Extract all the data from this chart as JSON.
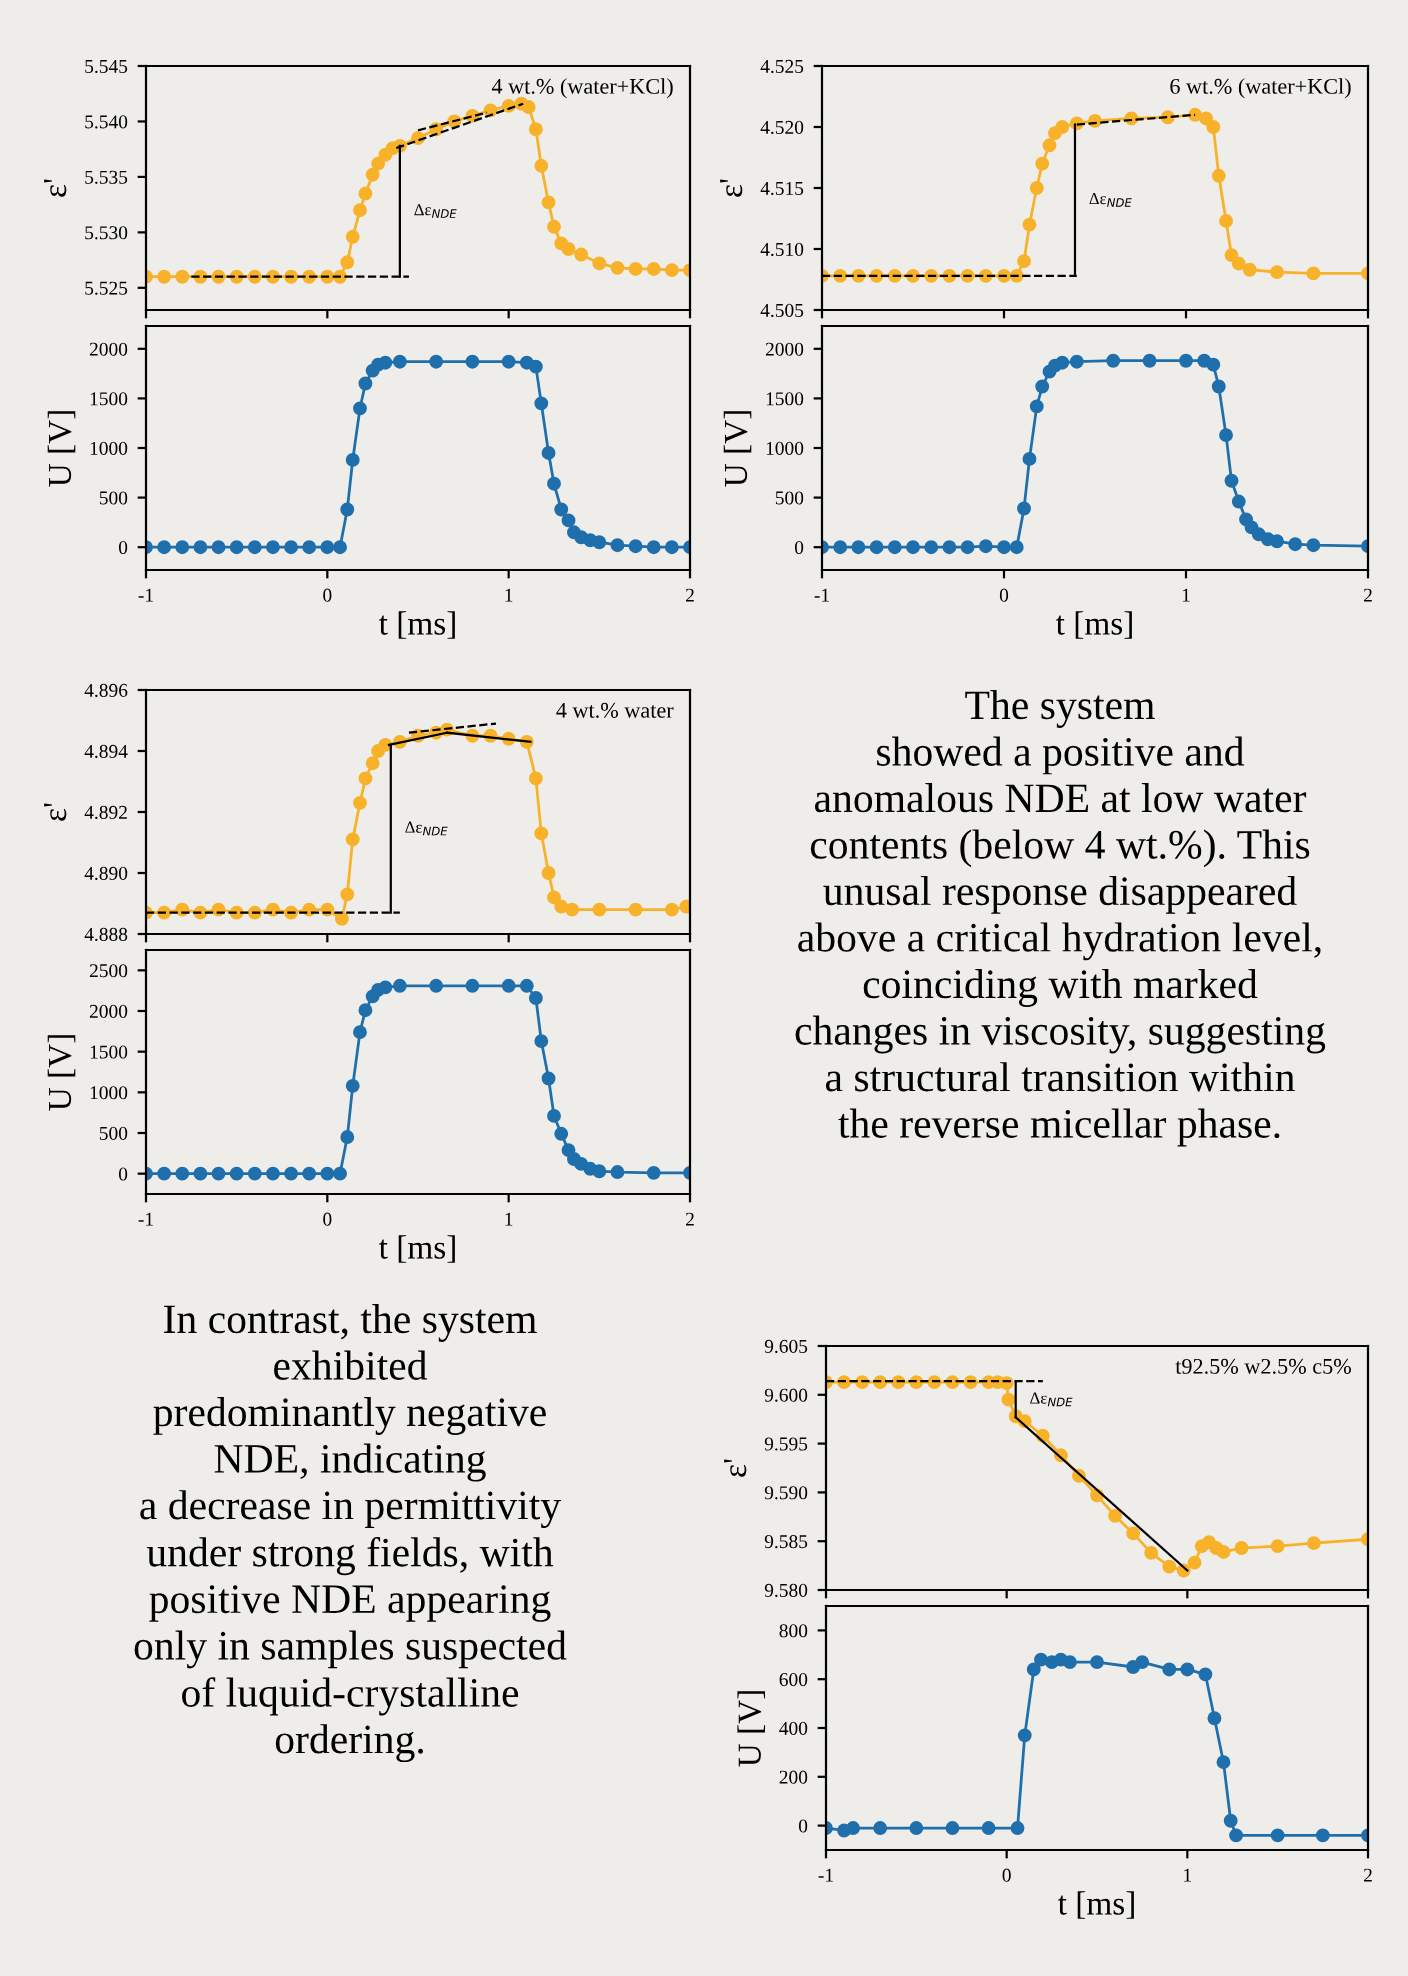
{
  "chart_data": [
    {
      "type": "line",
      "ylabel": "ε'",
      "xlim": [
        -1,
        2
      ],
      "xticks": [
        -1,
        0,
        1,
        2
      ],
      "ylim": [
        5.523,
        5.545
      ],
      "yticks": [
        5.525,
        {
          "value": 5.53,
          "label": "5.530"
        },
        5.535,
        {
          "value": 5.54,
          "label": "5.540"
        },
        5.545
      ],
      "tick_labels": "y",
      "marker": "circle",
      "grid": false,
      "legend": false,
      "annotations": [
        "4 wt.% (water+KCl)",
        "Δε$_{NDE}$"
      ],
      "series": [
        {
          "color": "#f8b22a",
          "x": [
            -1,
            -0.9,
            -0.8,
            -0.7,
            -0.6,
            -0.5,
            -0.4,
            -0.3,
            -0.2,
            -0.1,
            0,
            0.07,
            0.11,
            0.14,
            0.18,
            0.21,
            0.25,
            0.28,
            0.32,
            0.36,
            0.4,
            0.5,
            0.6,
            0.7,
            0.8,
            0.9,
            1.0,
            1.07,
            1.11,
            1.15,
            1.18,
            1.22,
            1.25,
            1.29,
            1.33,
            1.4,
            1.5,
            1.6,
            1.7,
            1.8,
            1.9,
            2.0
          ],
          "values": [
            5.526,
            5.526,
            5.526,
            5.526,
            5.526,
            5.526,
            5.526,
            5.526,
            5.526,
            5.526,
            5.526,
            5.526,
            5.5273,
            5.5296,
            5.532,
            5.5335,
            5.5352,
            5.5362,
            5.537,
            5.5376,
            5.5378,
            5.5385,
            5.5393,
            5.54,
            5.5405,
            5.541,
            5.5414,
            5.5416,
            5.5413,
            5.5393,
            5.536,
            5.5327,
            5.5305,
            5.529,
            5.5285,
            5.528,
            5.5272,
            5.5268,
            5.5267,
            5.5267,
            5.5266,
            5.5266
          ]
        },
        {
          "color": "#000000",
          "marker": "none",
          "line_style": "dashed",
          "x": [
            -0.75,
            0.45
          ],
          "values": [
            5.526,
            5.526
          ]
        },
        {
          "color": "#000000",
          "marker": "none",
          "line_style": "dashed",
          "x": [
            0.38,
            1.08
          ],
          "values": [
            5.5376,
            5.5416
          ]
        },
        {
          "color": "#000000",
          "marker": "none",
          "line_style": "dashed",
          "x": [
            0.5,
            0.88
          ],
          "values": [
            5.5392,
            5.5408
          ]
        },
        {
          "color": "#000000",
          "marker": "none",
          "x": [
            0.4,
            0.4
          ],
          "values": [
            5.526,
            5.5378
          ]
        }
      ]
    },
    {
      "type": "line",
      "ylabel": "U [V]",
      "xlabel": "t [ms]",
      "xlim": [
        -1,
        2
      ],
      "xticks": [
        -1,
        0,
        1,
        2
      ],
      "ylim": [
        -230,
        2230
      ],
      "yticks": [
        0,
        500,
        1000,
        1500,
        2000
      ],
      "marker": "circle",
      "grid": false,
      "legend": false,
      "series": [
        {
          "color": "#1f6fad",
          "x": [
            -1,
            -0.9,
            -0.8,
            -0.7,
            -0.6,
            -0.5,
            -0.4,
            -0.3,
            -0.2,
            -0.1,
            0,
            0.07,
            0.11,
            0.14,
            0.18,
            0.21,
            0.25,
            0.28,
            0.32,
            0.4,
            0.6,
            0.8,
            1.0,
            1.1,
            1.15,
            1.18,
            1.22,
            1.25,
            1.29,
            1.33,
            1.36,
            1.4,
            1.45,
            1.5,
            1.6,
            1.7,
            1.8,
            1.9,
            2.0
          ],
          "values": [
            0,
            0,
            0,
            0,
            0,
            0,
            0,
            0,
            0,
            0,
            0,
            0,
            380,
            880,
            1400,
            1650,
            1780,
            1840,
            1860,
            1870,
            1870,
            1870,
            1870,
            1860,
            1820,
            1450,
            950,
            640,
            380,
            270,
            150,
            100,
            70,
            50,
            20,
            10,
            0,
            0,
            0
          ]
        }
      ]
    },
    {
      "type": "line",
      "ylabel": "ε'",
      "xlim": [
        -1,
        2
      ],
      "xticks": [
        -1,
        0,
        1,
        2
      ],
      "ylim": [
        4.505,
        4.525
      ],
      "yticks": [
        4.505,
        {
          "value": 4.51,
          "label": "4.510"
        },
        4.515,
        {
          "value": 4.52,
          "label": "4.520"
        },
        4.525
      ],
      "tick_labels": "y",
      "marker": "circle",
      "grid": false,
      "legend": false,
      "annotations": [
        "6 wt.% (water+KCl)",
        "Δε$_{NDE}$"
      ],
      "series": [
        {
          "color": "#f8b22a",
          "x": [
            -1,
            -0.9,
            -0.8,
            -0.7,
            -0.6,
            -0.5,
            -0.4,
            -0.3,
            -0.2,
            -0.1,
            0,
            0.07,
            0.11,
            0.14,
            0.18,
            0.21,
            0.25,
            0.28,
            0.32,
            0.4,
            0.5,
            0.7,
            0.9,
            1.05,
            1.11,
            1.15,
            1.18,
            1.22,
            1.25,
            1.29,
            1.35,
            1.5,
            1.7,
            2.0
          ],
          "values": [
            4.5078,
            4.5078,
            4.5078,
            4.5078,
            4.5078,
            4.5078,
            4.5078,
            4.5078,
            4.5078,
            4.5078,
            4.5078,
            4.5078,
            4.509,
            4.512,
            4.515,
            4.517,
            4.5185,
            4.5195,
            4.52,
            4.5203,
            4.5205,
            4.5207,
            4.5208,
            4.521,
            4.5207,
            4.52,
            4.516,
            4.5123,
            4.5095,
            4.5088,
            4.5083,
            4.5081,
            4.508,
            4.508
          ]
        },
        {
          "color": "#000000",
          "marker": "none",
          "line_style": "dashed",
          "x": [
            -1,
            0.4
          ],
          "values": [
            4.5078,
            4.5078
          ]
        },
        {
          "color": "#000000",
          "marker": "none",
          "line_style": "dashed",
          "x": [
            0.4,
            1.05
          ],
          "values": [
            4.5202,
            4.521
          ]
        },
        {
          "color": "#000000",
          "marker": "none",
          "x": [
            0.39,
            0.39
          ],
          "values": [
            4.5078,
            4.5202
          ]
        }
      ]
    },
    {
      "type": "line",
      "ylabel": "U [V]",
      "xlabel": "t [ms]",
      "xlim": [
        -1,
        2
      ],
      "xticks": [
        -1,
        0,
        1,
        2
      ],
      "ylim": [
        -230,
        2230
      ],
      "yticks": [
        0,
        500,
        1000,
        1500,
        2000
      ],
      "marker": "circle",
      "grid": false,
      "legend": false,
      "series": [
        {
          "color": "#1f6fad",
          "x": [
            -1,
            -0.9,
            -0.8,
            -0.7,
            -0.6,
            -0.5,
            -0.4,
            -0.3,
            -0.2,
            -0.1,
            0,
            0.07,
            0.11,
            0.14,
            0.18,
            0.21,
            0.25,
            0.28,
            0.32,
            0.4,
            0.6,
            0.8,
            1.0,
            1.1,
            1.15,
            1.18,
            1.22,
            1.25,
            1.29,
            1.33,
            1.36,
            1.4,
            1.45,
            1.5,
            1.6,
            1.7,
            2.0
          ],
          "values": [
            0,
            0,
            0,
            0,
            0,
            0,
            0,
            0,
            0,
            10,
            0,
            0,
            390,
            890,
            1420,
            1620,
            1770,
            1830,
            1860,
            1870,
            1880,
            1880,
            1880,
            1880,
            1840,
            1620,
            1130,
            670,
            460,
            280,
            200,
            130,
            80,
            60,
            30,
            20,
            10
          ]
        }
      ]
    },
    {
      "type": "line",
      "ylabel": "ε'",
      "xlim": [
        -1,
        2
      ],
      "xticks": [
        -1,
        0,
        1,
        2
      ],
      "ylim": [
        4.888,
        4.896
      ],
      "yticks": [
        4.888,
        {
          "value": 4.89,
          "label": "4.890"
        },
        4.892,
        4.894,
        4.896
      ],
      "tick_labels": "y",
      "marker": "circle",
      "grid": false,
      "legend": false,
      "annotations": [
        "4 wt.% water",
        "Δε$_{NDE}$"
      ],
      "series": [
        {
          "color": "#f8b22a",
          "x": [
            -1,
            -0.9,
            -0.8,
            -0.7,
            -0.6,
            -0.5,
            -0.4,
            -0.3,
            -0.2,
            -0.1,
            0,
            0.08,
            0.11,
            0.14,
            0.18,
            0.21,
            0.25,
            0.28,
            0.32,
            0.4,
            0.5,
            0.6,
            0.66,
            0.8,
            0.9,
            1.0,
            1.1,
            1.15,
            1.18,
            1.22,
            1.25,
            1.29,
            1.35,
            1.5,
            1.7,
            1.9,
            1.98
          ],
          "values": [
            4.8887,
            4.8887,
            4.8888,
            4.8887,
            4.8888,
            4.8887,
            4.8887,
            4.8888,
            4.8887,
            4.8888,
            4.8888,
            4.8885,
            4.8893,
            4.8911,
            4.8923,
            4.8931,
            4.8936,
            4.894,
            4.8942,
            4.8943,
            4.8945,
            4.8946,
            4.8947,
            4.8945,
            4.8945,
            4.8944,
            4.8943,
            4.8931,
            4.8913,
            4.89,
            4.8892,
            4.8889,
            4.8888,
            4.8888,
            4.8888,
            4.8888,
            4.8889
          ]
        },
        {
          "color": "#000000",
          "marker": "none",
          "line_style": "dashed",
          "x": [
            -1,
            0.4
          ],
          "values": [
            4.8887,
            4.8887
          ]
        },
        {
          "color": "#000000",
          "marker": "none",
          "x": [
            0.34,
            0.66
          ],
          "values": [
            4.8942,
            4.8946
          ]
        },
        {
          "color": "#000000",
          "marker": "none",
          "x": [
            0.66,
            1.12
          ],
          "values": [
            4.8946,
            4.8943
          ]
        },
        {
          "color": "#000000",
          "marker": "none",
          "line_style": "dashed",
          "x": [
            0.45,
            0.93
          ],
          "values": [
            4.8946,
            4.8949
          ]
        },
        {
          "color": "#000000",
          "marker": "none",
          "x": [
            0.35,
            0.35
          ],
          "values": [
            4.8887,
            4.8942
          ]
        }
      ]
    },
    {
      "type": "line",
      "ylabel": "U [V]",
      "xlabel": "t [ms]",
      "xlim": [
        -1,
        2
      ],
      "xticks": [
        -1,
        0,
        1,
        2
      ],
      "ylim": [
        -250,
        2750
      ],
      "yticks": [
        0,
        500,
        1000,
        1500,
        2000,
        2500
      ],
      "marker": "circle",
      "grid": false,
      "legend": false,
      "series": [
        {
          "color": "#1f6fad",
          "x": [
            -1,
            -0.9,
            -0.8,
            -0.7,
            -0.6,
            -0.5,
            -0.4,
            -0.3,
            -0.2,
            -0.1,
            0,
            0.07,
            0.11,
            0.14,
            0.18,
            0.21,
            0.25,
            0.28,
            0.32,
            0.4,
            0.6,
            0.8,
            1.0,
            1.1,
            1.15,
            1.18,
            1.22,
            1.25,
            1.29,
            1.33,
            1.36,
            1.4,
            1.45,
            1.5,
            1.6,
            1.8,
            2.0
          ],
          "values": [
            0,
            0,
            0,
            0,
            0,
            0,
            0,
            0,
            0,
            0,
            0,
            0,
            450,
            1080,
            1740,
            2010,
            2180,
            2260,
            2290,
            2310,
            2310,
            2310,
            2310,
            2310,
            2160,
            1630,
            1170,
            710,
            490,
            290,
            180,
            120,
            60,
            30,
            20,
            10,
            10
          ]
        }
      ]
    },
    {
      "type": "other",
      "annotations": [
        "The system\nshowed a positive and\nanomalous NDE at low water\ncontents (below 4 wt.%). This\nunusal response disappeared\nabove a critical hydration level,\ncoinciding with marked\nchanges in viscosity, suggesting\na structural transition within\nthe reverse micellar phase."
      ]
    },
    {
      "type": "other",
      "annotations": [
        "In contrast, the system\nexhibited\npredominantly negative\nNDE, indicating\na decrease in permittivity\nunder strong fields, with\npositive NDE appearing\nonly in samples suspected\nof luquid-crystalline\nordering."
      ]
    },
    {
      "type": "line",
      "ylabel": "ε'",
      "xlim": [
        -1,
        2
      ],
      "xticks": [
        -1,
        0,
        1,
        2
      ],
      "ylim": [
        9.58,
        9.605
      ],
      "yticks": [
        {
          "value": 9.58,
          "label": "9.580"
        },
        9.585,
        {
          "value": 9.59,
          "label": "9.590"
        },
        9.595,
        {
          "value": 9.6,
          "label": "9.600"
        },
        9.605
      ],
      "tick_labels": "y",
      "marker": "circle",
      "grid": false,
      "legend": false,
      "annotations": [
        "t92.5% w2.5% c5%",
        "Δε$_{NDE}$"
      ],
      "series": [
        {
          "color": "#f8b22a",
          "x": [
            -1,
            -0.9,
            -0.8,
            -0.7,
            -0.6,
            -0.5,
            -0.4,
            -0.3,
            -0.2,
            -0.1,
            -0.05,
            0,
            0.01,
            0.05,
            0.1,
            0.2,
            0.3,
            0.4,
            0.5,
            0.6,
            0.7,
            0.8,
            0.9,
            0.98,
            1.04,
            1.08,
            1.12,
            1.16,
            1.2,
            1.3,
            1.5,
            1.7,
            2.0
          ],
          "values": [
            9.6013,
            9.6013,
            9.6013,
            9.6013,
            9.6013,
            9.6013,
            9.6013,
            9.6013,
            9.6013,
            9.6013,
            9.6013,
            9.6012,
            9.5995,
            9.5978,
            9.5973,
            9.5958,
            9.5938,
            9.5917,
            9.5897,
            9.5876,
            9.5858,
            9.5838,
            9.5824,
            9.582,
            9.5828,
            9.5845,
            9.5849,
            9.5843,
            9.5839,
            9.5843,
            9.5845,
            9.5848,
            9.5852
          ]
        },
        {
          "color": "#000000",
          "marker": "none",
          "line_style": "dashed",
          "x": [
            -1,
            0.2
          ],
          "values": [
            9.6014,
            9.6014
          ]
        },
        {
          "color": "#000000",
          "marker": "none",
          "x": [
            0.05,
            1.0
          ],
          "values": [
            9.5977,
            9.582
          ]
        },
        {
          "color": "#000000",
          "marker": "none",
          "x": [
            0.05,
            0.05
          ],
          "values": [
            9.5977,
            9.6013
          ]
        }
      ]
    },
    {
      "type": "line",
      "ylabel": "U [V]",
      "xlabel": "t [ms]",
      "xlim": [
        -1,
        2
      ],
      "xticks": [
        -1,
        0,
        1,
        2
      ],
      "ylim": [
        -100,
        900
      ],
      "yticks": [
        0,
        200,
        400,
        600,
        800
      ],
      "marker": "circle",
      "grid": false,
      "legend": false,
      "series": [
        {
          "color": "#1f6fad",
          "x": [
            -1,
            -0.9,
            -0.85,
            -0.7,
            -0.5,
            -0.3,
            -0.1,
            0.06,
            0.1,
            0.15,
            0.19,
            0.25,
            0.3,
            0.35,
            0.5,
            0.7,
            0.75,
            0.9,
            1.0,
            1.1,
            1.15,
            1.2,
            1.24,
            1.27,
            1.5,
            1.75,
            2.0
          ],
          "values": [
            -10,
            -20,
            -10,
            -10,
            -10,
            -10,
            -10,
            -10,
            370,
            640,
            680,
            670,
            680,
            670,
            670,
            650,
            670,
            640,
            640,
            620,
            440,
            260,
            20,
            -40,
            -40,
            -40,
            -40
          ]
        }
      ]
    }
  ]
}
